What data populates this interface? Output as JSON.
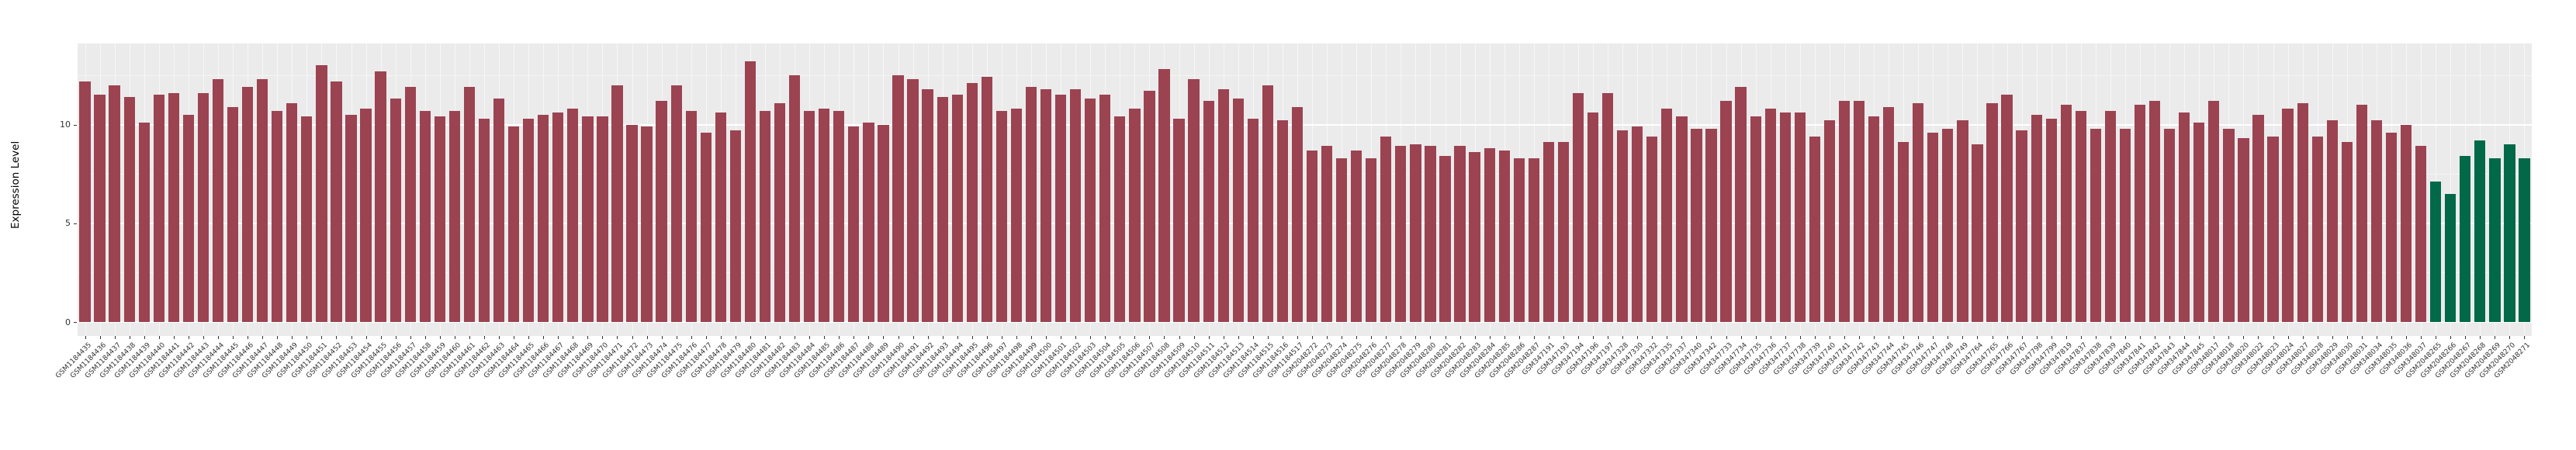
{
  "chart_data": {
    "type": "bar",
    "title": "",
    "xlabel": "",
    "ylabel": "Expression Level",
    "yticks": [
      0,
      5,
      10
    ],
    "ylim": [
      0,
      14.1
    ],
    "grid": "on",
    "legend_position": "none",
    "panel_bg_color": "#ebebeb",
    "grid_major_color": "#ffffff",
    "grid_minor_color": "#f5f5f5",
    "bar_color_default": "#9b4351",
    "bar_color_highlight": "#016848",
    "highlighted_categories": [
      "GSM2048265",
      "GSM2048266",
      "GSM2048267",
      "GSM2048268",
      "GSM2048269",
      "GSM2048270",
      "GSM2048271"
    ],
    "categories": [
      "GSM1184435",
      "GSM1184436",
      "GSM1184437",
      "GSM1184438",
      "GSM1184439",
      "GSM1184440",
      "GSM1184441",
      "GSM1184442",
      "GSM1184443",
      "GSM1184444",
      "GSM1184445",
      "GSM1184446",
      "GSM1184447",
      "GSM1184448",
      "GSM1184449",
      "GSM1184450",
      "GSM1184451",
      "GSM1184452",
      "GSM1184453",
      "GSM1184454",
      "GSM1184455",
      "GSM1184456",
      "GSM1184457",
      "GSM1184458",
      "GSM1184459",
      "GSM1184460",
      "GSM1184461",
      "GSM1184462",
      "GSM1184463",
      "GSM1184464",
      "GSM1184465",
      "GSM1184466",
      "GSM1184467",
      "GSM1184468",
      "GSM1184469",
      "GSM1184470",
      "GSM1184471",
      "GSM1184472",
      "GSM1184473",
      "GSM1184474",
      "GSM1184475",
      "GSM1184476",
      "GSM1184477",
      "GSM1184478",
      "GSM1184479",
      "GSM1184480",
      "GSM1184481",
      "GSM1184482",
      "GSM1184483",
      "GSM1184484",
      "GSM1184485",
      "GSM1184486",
      "GSM1184487",
      "GSM1184488",
      "GSM1184489",
      "GSM1184490",
      "GSM1184491",
      "GSM1184492",
      "GSM1184493",
      "GSM1184494",
      "GSM1184495",
      "GSM1184496",
      "GSM1184497",
      "GSM1184498",
      "GSM1184499",
      "GSM1184500",
      "GSM1184501",
      "GSM1184502",
      "GSM1184503",
      "GSM1184504",
      "GSM1184505",
      "GSM1184506",
      "GSM1184507",
      "GSM1184508",
      "GSM1184509",
      "GSM1184510",
      "GSM1184511",
      "GSM1184512",
      "GSM1184513",
      "GSM1184514",
      "GSM1184515",
      "GSM1184516",
      "GSM1184517",
      "GSM2048272",
      "GSM2048273",
      "GSM2048274",
      "GSM2048275",
      "GSM2048276",
      "GSM2048277",
      "GSM2048278",
      "GSM2048279",
      "GSM2048280",
      "GSM2048281",
      "GSM2048282",
      "GSM2048283",
      "GSM2048284",
      "GSM2048285",
      "GSM2048286",
      "GSM2048287",
      "GSM347191",
      "GSM347193",
      "GSM347194",
      "GSM347196",
      "GSM347197",
      "GSM347328",
      "GSM347330",
      "GSM347332",
      "GSM347335",
      "GSM347337",
      "GSM347340",
      "GSM347342",
      "GSM347733",
      "GSM347734",
      "GSM347735",
      "GSM347736",
      "GSM347737",
      "GSM347738",
      "GSM347739",
      "GSM347740",
      "GSM347741",
      "GSM347742",
      "GSM347743",
      "GSM347744",
      "GSM347745",
      "GSM347746",
      "GSM347747",
      "GSM347748",
      "GSM347749",
      "GSM347764",
      "GSM347765",
      "GSM347766",
      "GSM347767",
      "GSM347798",
      "GSM347799",
      "GSM347819",
      "GSM347837",
      "GSM347838",
      "GSM347839",
      "GSM347840",
      "GSM347841",
      "GSM347842",
      "GSM347843",
      "GSM347844",
      "GSM347845",
      "GSM348017",
      "GSM348018",
      "GSM348020",
      "GSM348022",
      "GSM348023",
      "GSM348024",
      "GSM348027",
      "GSM348028",
      "GSM348029",
      "GSM348030",
      "GSM348031",
      "GSM348034",
      "GSM348035",
      "GSM348036",
      "GSM348037",
      "GSM2048265",
      "GSM2048266",
      "GSM2048267",
      "GSM2048268",
      "GSM2048269",
      "GSM2048270",
      "GSM2048271"
    ],
    "values": [
      12.2,
      11.5,
      12.0,
      11.4,
      10.1,
      11.5,
      11.6,
      10.5,
      11.6,
      12.3,
      10.9,
      11.9,
      12.3,
      10.7,
      11.1,
      10.4,
      13.0,
      12.2,
      10.5,
      10.8,
      12.7,
      11.3,
      11.9,
      10.7,
      10.4,
      10.7,
      11.9,
      10.3,
      11.3,
      9.9,
      10.3,
      10.5,
      10.6,
      10.8,
      10.4,
      10.4,
      12.0,
      10.0,
      9.9,
      11.2,
      12.0,
      10.7,
      9.6,
      10.6,
      9.7,
      13.2,
      10.7,
      11.1,
      12.5,
      10.7,
      10.8,
      10.7,
      9.9,
      10.1,
      10.0,
      12.5,
      12.3,
      11.8,
      11.4,
      11.5,
      12.1,
      12.4,
      10.7,
      10.8,
      11.9,
      11.8,
      11.5,
      11.8,
      11.3,
      11.5,
      10.4,
      10.8,
      11.7,
      12.8,
      10.3,
      12.3,
      11.2,
      11.8,
      11.3,
      10.3,
      12.0,
      10.2,
      10.9,
      8.7,
      8.9,
      8.3,
      8.7,
      8.3,
      9.4,
      8.9,
      9.0,
      8.9,
      8.4,
      8.9,
      8.6,
      8.8,
      8.7,
      8.3,
      8.3,
      9.1,
      9.1,
      11.6,
      10.6,
      11.6,
      9.7,
      9.9,
      9.4,
      10.8,
      10.4,
      9.8,
      9.8,
      11.2,
      11.9,
      10.4,
      10.8,
      10.6,
      10.6,
      9.4,
      10.2,
      11.2,
      11.2,
      10.4,
      10.9,
      9.1,
      11.1,
      9.6,
      9.8,
      10.2,
      9.0,
      11.1,
      11.5,
      9.7,
      10.5,
      10.3,
      11.0,
      10.7,
      9.8,
      10.7,
      9.8,
      11.0,
      11.2,
      9.8,
      10.6,
      10.1,
      11.2,
      9.8,
      9.3,
      10.5,
      9.4,
      10.8,
      11.1,
      9.4,
      10.2,
      9.1,
      11.0,
      10.2,
      9.6,
      10.0,
      8.9,
      7.1,
      6.5,
      8.4,
      9.2,
      8.3,
      9.0,
      8.3
    ]
  }
}
